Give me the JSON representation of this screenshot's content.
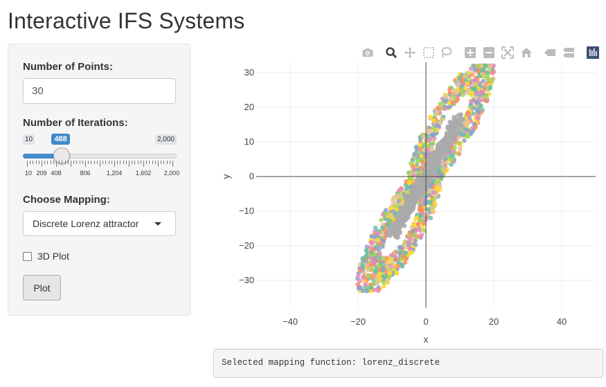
{
  "app": {
    "title": "Interactive IFS Systems"
  },
  "controls": {
    "points": {
      "label": "Number of Points:",
      "value": "30"
    },
    "iterations": {
      "label": "Number of Iterations:",
      "min": 10,
      "max": 2000,
      "value": 488,
      "min_label": "10",
      "max_label": "2,000",
      "value_label": "488",
      "tick_labels": [
        "10",
        "209",
        "408",
        "806",
        "1,204",
        "1,602",
        "2,000"
      ]
    },
    "mapping": {
      "label": "Choose Mapping:",
      "selected": "Discrete Lorenz attractor"
    },
    "plot3d": {
      "label": "3D Plot",
      "checked": false
    },
    "plot_button": "Plot"
  },
  "modebar": {
    "icons": [
      "camera-icon",
      "zoom-icon",
      "pan-icon",
      "box-select-icon",
      "lasso-icon",
      "zoom-in-icon",
      "zoom-out-icon",
      "autoscale-icon",
      "home-icon",
      "spike-lines-icon",
      "compare-hover-icon",
      "plotly-logo-icon"
    ],
    "color": "#bbbbbb",
    "logo_color": "#3f4f75"
  },
  "chart_data": {
    "type": "scatter",
    "title": "",
    "xlabel": "x",
    "ylabel": "y",
    "xlim": [
      -50,
      50
    ],
    "ylim": [
      -38,
      33
    ],
    "xticks": [
      -40,
      -20,
      0,
      20,
      40
    ],
    "yticks": [
      -30,
      -20,
      -10,
      0,
      10,
      20,
      30
    ],
    "xtick_labels": [
      "−40",
      "−20",
      "0",
      "20",
      "40"
    ],
    "ytick_labels": [
      "−30",
      "−20",
      "−10",
      "0",
      "10",
      "20",
      "30"
    ],
    "grid": true,
    "zero_lines": true,
    "legend": "none",
    "colors": [
      "#66c2a5",
      "#fc8d62",
      "#8da0cb",
      "#e78ac3",
      "#a6d854",
      "#ffd92f",
      "#e5c494",
      "#b3b3b3"
    ],
    "series": [
      {
        "attractor": "discrete-lorenz",
        "points": 30,
        "iterations": 488
      }
    ]
  },
  "output": {
    "text": "Selected mapping function: lorenz_discrete"
  }
}
